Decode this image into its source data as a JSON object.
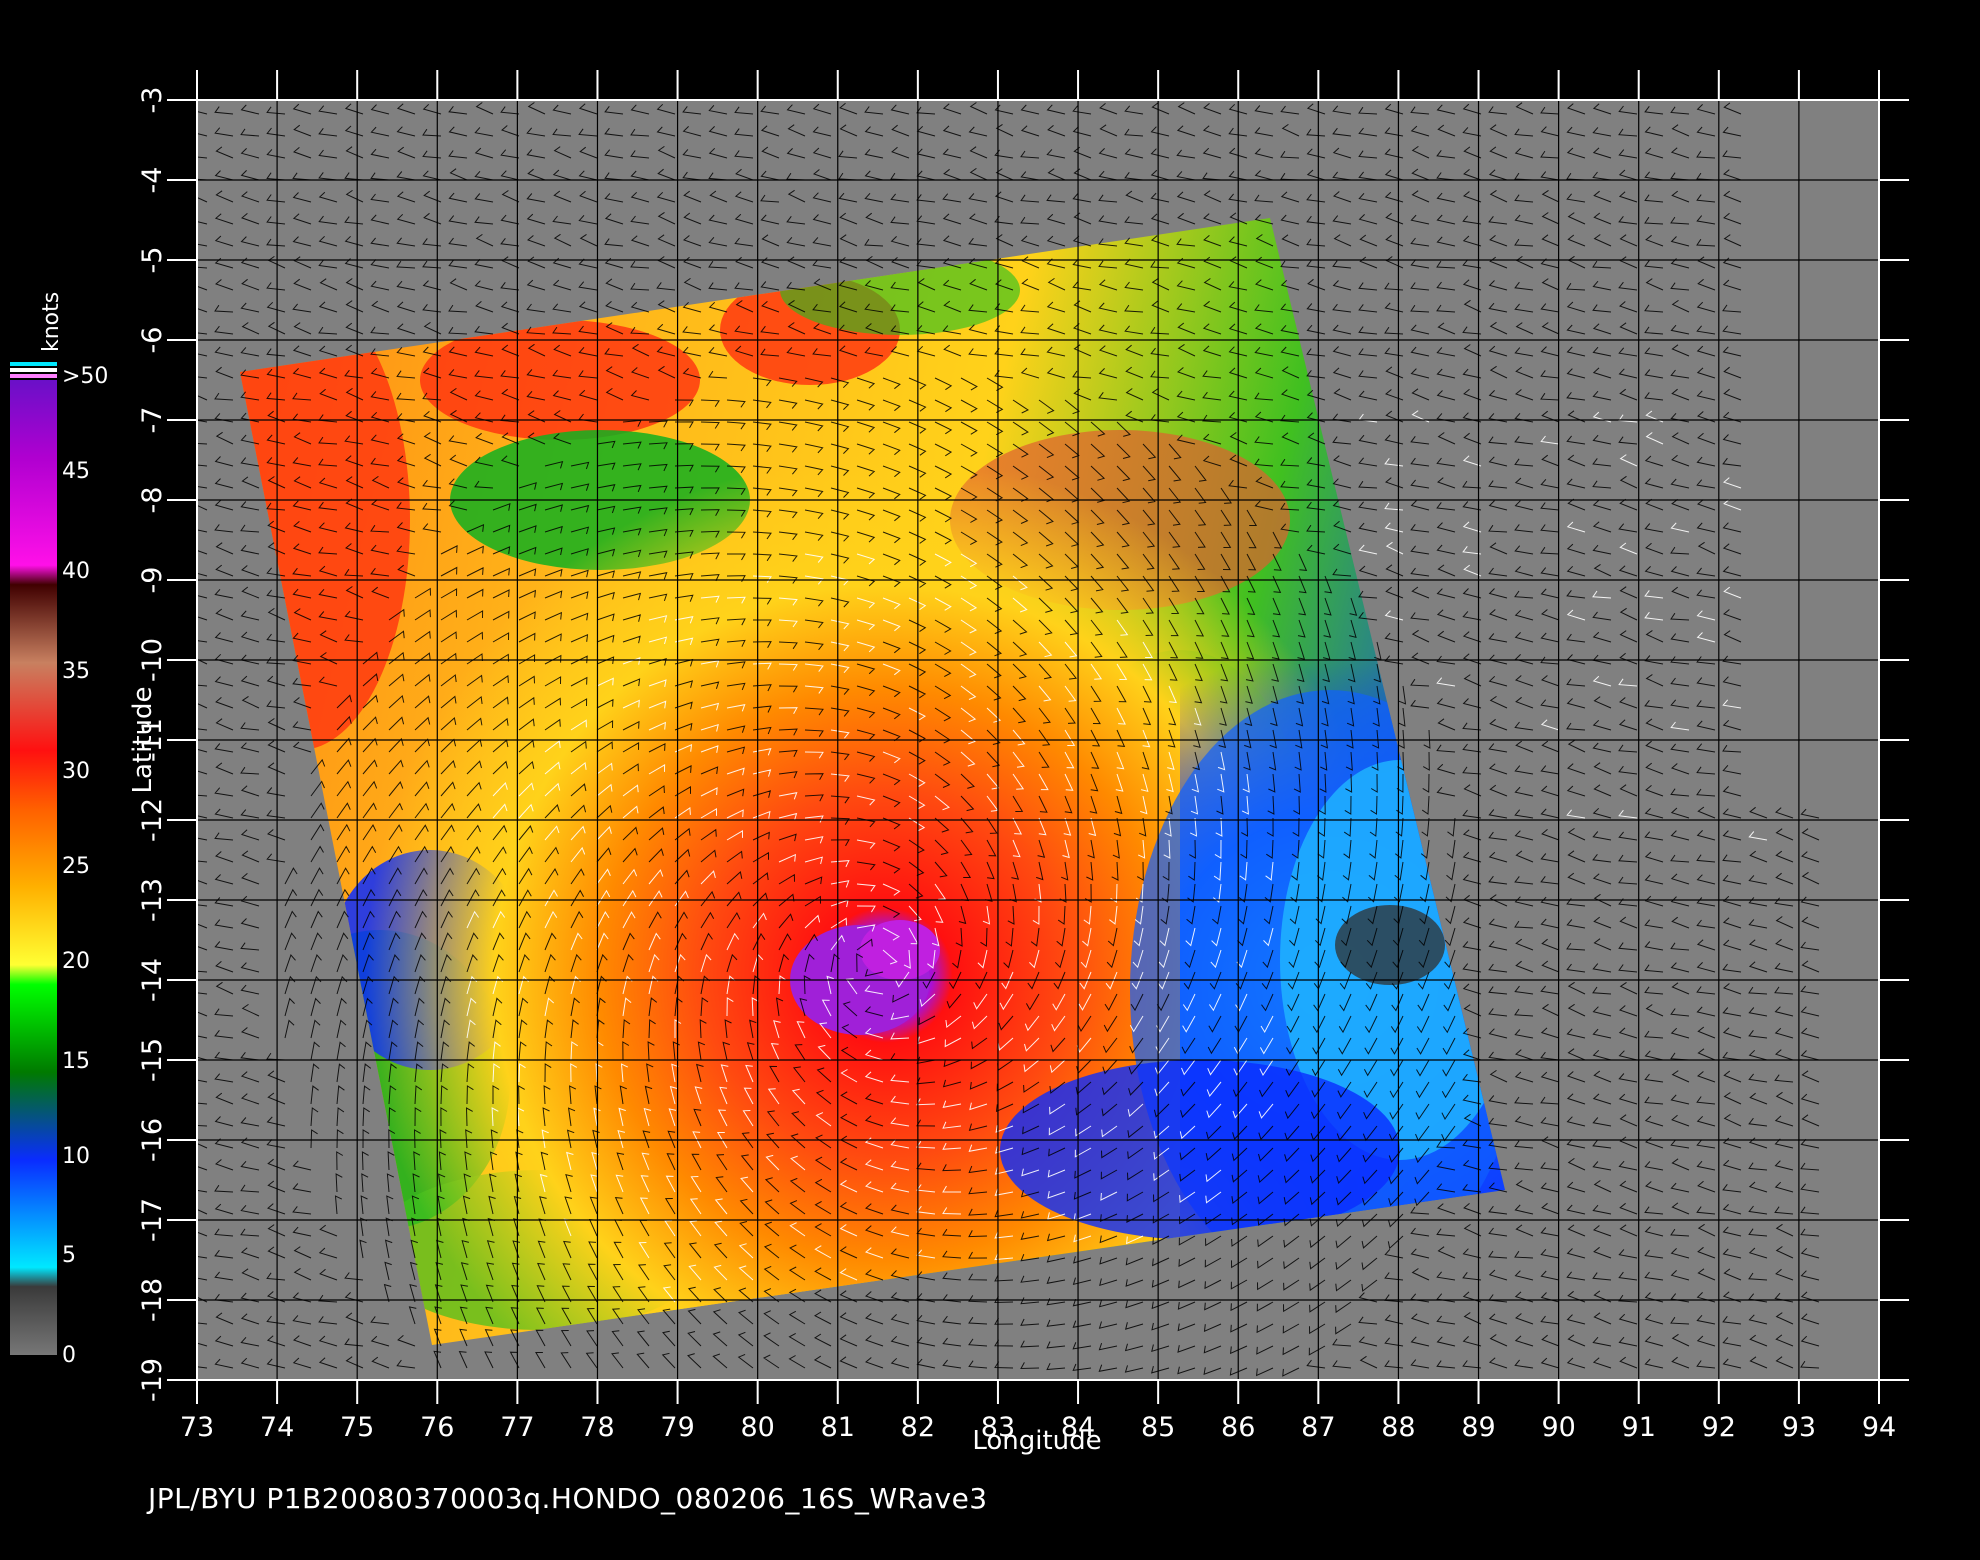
{
  "footer": "JPL/BYU  P1B20080370003q.HONDO_080206_16S_WRave3",
  "axes": {
    "xlabel": "Longitude",
    "ylabel": "Latitude",
    "x_ticks": [
      "73",
      "74",
      "75",
      "76",
      "77",
      "78",
      "79",
      "80",
      "81",
      "82",
      "83",
      "84",
      "85",
      "86",
      "87",
      "88",
      "89",
      "90",
      "91",
      "92",
      "93",
      "94"
    ],
    "y_ticks": [
      "-3",
      "-4",
      "-5",
      "-6",
      "-7",
      "-8",
      "-9",
      "-10",
      "-11",
      "-12",
      "-13",
      "-14",
      "-15",
      "-16",
      "-17",
      "-18",
      "-19"
    ],
    "xlim": [
      73,
      94
    ],
    "ylim": [
      -19,
      -3
    ]
  },
  "colorbar": {
    "unit": "knots",
    "labels": [
      ">50",
      "45",
      "40",
      "35",
      "30",
      "25",
      "20",
      "15",
      "10",
      "5",
      "0"
    ],
    "stops": [
      {
        "label": "0",
        "color": "#777777"
      },
      {
        "label": "5",
        "color": "#00e8ff"
      },
      {
        "label": "10",
        "color": "#0a2cff"
      },
      {
        "label": "15",
        "color": "#00d400"
      },
      {
        "label": "20",
        "color": "#ffff33"
      },
      {
        "label": "25",
        "color": "#ff8000"
      },
      {
        "label": "30",
        "color": "#ff1010"
      },
      {
        "label": "35",
        "color": "#c88060"
      },
      {
        "label": "40",
        "color": "#ff10e8"
      },
      {
        "label": "45",
        "color": "#b000d0"
      },
      {
        "label": ">50",
        "color": "#6a10c8"
      }
    ]
  },
  "colors": {
    "background": "#000000",
    "no_data": "#808080",
    "grid": "#000000"
  },
  "storm": {
    "name": "HONDO",
    "center_lon": 81.5,
    "center_lat": -13.8
  }
}
